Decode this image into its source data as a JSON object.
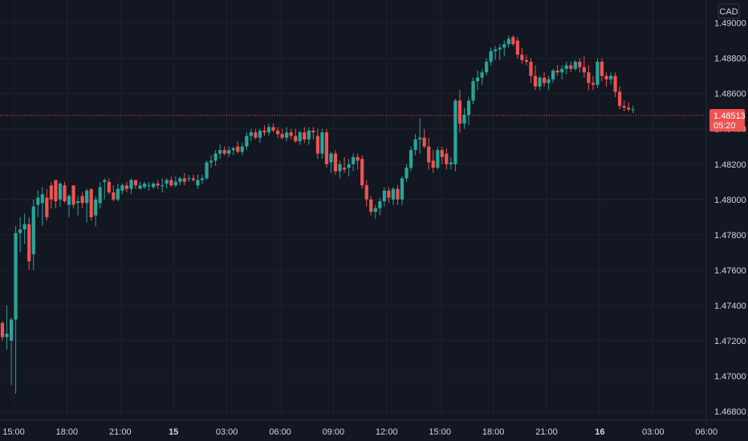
{
  "chart_data": {
    "type": "candlestick",
    "currency": "CAD",
    "y_ticks": [
      "1.49000",
      "1.48800",
      "1.48600",
      "1.48400",
      "1.48200",
      "1.48000",
      "1.47800",
      "1.47600",
      "1.47400",
      "1.47200",
      "1.47000",
      "1.46800"
    ],
    "x_ticks": [
      {
        "label": "15:00",
        "bold": false
      },
      {
        "label": "18:00",
        "bold": false
      },
      {
        "label": "21:00",
        "bold": false
      },
      {
        "label": "15",
        "bold": true
      },
      {
        "label": "03:00",
        "bold": false
      },
      {
        "label": "06:00",
        "bold": false
      },
      {
        "label": "09:00",
        "bold": false
      },
      {
        "label": "12:00",
        "bold": false
      },
      {
        "label": "15:00",
        "bold": false
      },
      {
        "label": "18:00",
        "bold": false
      },
      {
        "label": "21:00",
        "bold": false
      },
      {
        "label": "16",
        "bold": true
      },
      {
        "label": "03:00",
        "bold": false
      },
      {
        "label": "06:00",
        "bold": false
      }
    ],
    "ylim": [
      1.4675,
      1.4913
    ],
    "current_price": "1.48513",
    "countdown": "05:20",
    "up_color": "#26a69a",
    "down_color": "#ef5350",
    "grid": true,
    "candles": [
      [
        1.473,
        1.4731,
        1.472,
        1.4722
      ],
      [
        1.4722,
        1.474,
        1.4715,
        1.4724
      ],
      [
        1.472,
        1.4733,
        1.4695,
        1.4732
      ],
      [
        1.4732,
        1.4785,
        1.469,
        1.4781
      ],
      [
        1.4781,
        1.479,
        1.477,
        1.4783
      ],
      [
        1.4783,
        1.4792,
        1.4775,
        1.4786
      ],
      [
        1.4786,
        1.479,
        1.476,
        1.4765
      ],
      [
        1.4769,
        1.48,
        1.476,
        1.4796
      ],
      [
        1.4797,
        1.4805,
        1.479,
        1.4801
      ],
      [
        1.4798,
        1.4807,
        1.4785,
        1.4803
      ],
      [
        1.4801,
        1.4806,
        1.4788,
        1.479
      ],
      [
        1.4808,
        1.481,
        1.4795,
        1.48
      ],
      [
        1.4811,
        1.4811,
        1.4795,
        1.4799
      ],
      [
        1.48,
        1.481,
        1.4796,
        1.4809
      ],
      [
        1.4808,
        1.481,
        1.4798,
        1.4799
      ],
      [
        1.4797,
        1.4803,
        1.479,
        1.4802
      ],
      [
        1.4808,
        1.4808,
        1.4795,
        1.4797
      ],
      [
        1.4798,
        1.4802,
        1.4791,
        1.4799
      ],
      [
        1.4802,
        1.4804,
        1.4795,
        1.4798
      ],
      [
        1.4798,
        1.4806,
        1.4787,
        1.4805
      ],
      [
        1.4806,
        1.4806,
        1.4788,
        1.479
      ],
      [
        1.4791,
        1.4802,
        1.4785,
        1.48
      ],
      [
        1.4798,
        1.481,
        1.4795,
        1.4807
      ],
      [
        1.481,
        1.4812,
        1.48,
        1.4811
      ],
      [
        1.481,
        1.4812,
        1.4803,
        1.4804
      ],
      [
        1.4804,
        1.4808,
        1.4799,
        1.48
      ],
      [
        1.48,
        1.4809,
        1.4799,
        1.4806
      ],
      [
        1.4805,
        1.4809,
        1.4803,
        1.4808
      ],
      [
        1.4808,
        1.481,
        1.4804,
        1.4806
      ],
      [
        1.4806,
        1.4812,
        1.4803,
        1.4811
      ],
      [
        1.4811,
        1.4811,
        1.4806,
        1.4808
      ],
      [
        1.4806,
        1.481,
        1.4806,
        1.4808
      ],
      [
        1.4807,
        1.481,
        1.4806,
        1.4809
      ],
      [
        1.4808,
        1.481,
        1.4805,
        1.4808
      ],
      [
        1.4807,
        1.481,
        1.4806,
        1.4809
      ],
      [
        1.4809,
        1.4811,
        1.4806,
        1.4808
      ],
      [
        1.4808,
        1.4812,
        1.4804,
        1.4808
      ],
      [
        1.4809,
        1.4812,
        1.4806,
        1.4811
      ],
      [
        1.4811,
        1.4813,
        1.4807,
        1.4808
      ],
      [
        1.4808,
        1.4813,
        1.4807,
        1.481
      ],
      [
        1.481,
        1.4813,
        1.4808,
        1.4812
      ],
      [
        1.4812,
        1.4815,
        1.4808,
        1.481
      ],
      [
        1.4812,
        1.4814,
        1.481,
        1.4812
      ],
      [
        1.4812,
        1.4814,
        1.481,
        1.4811
      ],
      [
        1.4808,
        1.4814,
        1.4806,
        1.4811
      ],
      [
        1.4811,
        1.4814,
        1.4809,
        1.4812
      ],
      [
        1.4812,
        1.4822,
        1.4811,
        1.4821
      ],
      [
        1.4821,
        1.4825,
        1.4818,
        1.4822
      ],
      [
        1.4822,
        1.4828,
        1.4819,
        1.4826
      ],
      [
        1.4826,
        1.4831,
        1.4823,
        1.4828
      ],
      [
        1.4828,
        1.483,
        1.4825,
        1.4826
      ],
      [
        1.4826,
        1.483,
        1.4824,
        1.4828
      ],
      [
        1.4828,
        1.483,
        1.4825,
        1.4829
      ],
      [
        1.483,
        1.4833,
        1.4826,
        1.4827
      ],
      [
        1.4827,
        1.4832,
        1.4825,
        1.483
      ],
      [
        1.483,
        1.4838,
        1.4828,
        1.4836
      ],
      [
        1.4836,
        1.484,
        1.4833,
        1.4838
      ],
      [
        1.4838,
        1.484,
        1.4834,
        1.4835
      ],
      [
        1.4835,
        1.484,
        1.4832,
        1.4839
      ],
      [
        1.4839,
        1.4842,
        1.4836,
        1.4838
      ],
      [
        1.4838,
        1.4843,
        1.4836,
        1.4841
      ],
      [
        1.4841,
        1.4843,
        1.4838,
        1.4839
      ],
      [
        1.4839,
        1.4841,
        1.4835,
        1.4837
      ],
      [
        1.4837,
        1.484,
        1.4834,
        1.4835
      ],
      [
        1.4835,
        1.4841,
        1.4833,
        1.4838
      ],
      [
        1.4838,
        1.484,
        1.4834,
        1.4836
      ],
      [
        1.4836,
        1.484,
        1.4832,
        1.4833
      ],
      [
        1.4833,
        1.4839,
        1.4831,
        1.4838
      ],
      [
        1.4838,
        1.4841,
        1.4832,
        1.4834
      ],
      [
        1.4834,
        1.4841,
        1.4831,
        1.4839
      ],
      [
        1.4839,
        1.4841,
        1.4834,
        1.4838
      ],
      [
        1.4836,
        1.484,
        1.4823,
        1.4826
      ],
      [
        1.4826,
        1.484,
        1.4823,
        1.4838
      ],
      [
        1.4838,
        1.484,
        1.4818,
        1.482
      ],
      [
        1.4821,
        1.4827,
        1.4815,
        1.4826
      ],
      [
        1.4826,
        1.4828,
        1.4814,
        1.4816
      ],
      [
        1.4816,
        1.4822,
        1.4812,
        1.482
      ],
      [
        1.4818,
        1.4824,
        1.4815,
        1.4817
      ],
      [
        1.4818,
        1.4823,
        1.4813,
        1.482
      ],
      [
        1.482,
        1.4826,
        1.4816,
        1.4824
      ],
      [
        1.4824,
        1.4826,
        1.4817,
        1.4822
      ],
      [
        1.4823,
        1.4825,
        1.4806,
        1.4808
      ],
      [
        1.4808,
        1.4811,
        1.4796,
        1.48
      ],
      [
        1.48,
        1.4802,
        1.4791,
        1.4793
      ],
      [
        1.4793,
        1.4797,
        1.4789,
        1.4795
      ],
      [
        1.4795,
        1.4801,
        1.4791,
        1.4799
      ],
      [
        1.4799,
        1.4807,
        1.4796,
        1.4805
      ],
      [
        1.4805,
        1.4807,
        1.4798,
        1.4801
      ],
      [
        1.48,
        1.4807,
        1.4797,
        1.4806
      ],
      [
        1.4806,
        1.4808,
        1.4797,
        1.48
      ],
      [
        1.48,
        1.4813,
        1.4797,
        1.4812
      ],
      [
        1.4812,
        1.482,
        1.481,
        1.4818
      ],
      [
        1.4818,
        1.483,
        1.4816,
        1.4828
      ],
      [
        1.4828,
        1.4837,
        1.4825,
        1.4834
      ],
      [
        1.4834,
        1.4846,
        1.4826,
        1.4835
      ],
      [
        1.4835,
        1.484,
        1.4829,
        1.483
      ],
      [
        1.483,
        1.4835,
        1.4817,
        1.4821
      ],
      [
        1.4822,
        1.4828,
        1.4815,
        1.4818
      ],
      [
        1.4818,
        1.483,
        1.4817,
        1.4828
      ],
      [
        1.4828,
        1.483,
        1.482,
        1.4824
      ],
      [
        1.4826,
        1.4829,
        1.4817,
        1.482
      ],
      [
        1.482,
        1.4824,
        1.4817,
        1.4821
      ],
      [
        1.482,
        1.4857,
        1.4816,
        1.4856
      ],
      [
        1.4856,
        1.4862,
        1.4838,
        1.4843
      ],
      [
        1.4843,
        1.4852,
        1.484,
        1.4848
      ],
      [
        1.4848,
        1.4858,
        1.4842,
        1.4856
      ],
      [
        1.4856,
        1.4869,
        1.4854,
        1.4867
      ],
      [
        1.4867,
        1.4873,
        1.4862,
        1.4869
      ],
      [
        1.4869,
        1.4874,
        1.4865,
        1.4872
      ],
      [
        1.4872,
        1.488,
        1.487,
        1.4878
      ],
      [
        1.4878,
        1.4886,
        1.4876,
        1.4884
      ],
      [
        1.4884,
        1.4887,
        1.4879,
        1.4885
      ],
      [
        1.4885,
        1.4888,
        1.4879,
        1.4886
      ],
      [
        1.4886,
        1.489,
        1.4881,
        1.4888
      ],
      [
        1.4888,
        1.4893,
        1.4886,
        1.4891
      ],
      [
        1.4892,
        1.4893,
        1.4887,
        1.4888
      ],
      [
        1.489,
        1.4892,
        1.488,
        1.4882
      ],
      [
        1.4882,
        1.4886,
        1.4877,
        1.4879
      ],
      [
        1.4879,
        1.4882,
        1.4876,
        1.4878
      ],
      [
        1.4878,
        1.488,
        1.4866,
        1.487
      ],
      [
        1.487,
        1.4876,
        1.4862,
        1.4864
      ],
      [
        1.4864,
        1.487,
        1.4862,
        1.4869
      ],
      [
        1.4869,
        1.4872,
        1.4864,
        1.4866
      ],
      [
        1.4866,
        1.487,
        1.4862,
        1.4868
      ],
      [
        1.4868,
        1.4874,
        1.4866,
        1.4873
      ],
      [
        1.4873,
        1.4876,
        1.487,
        1.4872
      ],
      [
        1.4872,
        1.4876,
        1.4868,
        1.4874
      ],
      [
        1.4874,
        1.4878,
        1.4871,
        1.4876
      ],
      [
        1.4876,
        1.4878,
        1.4872,
        1.4874
      ],
      [
        1.4874,
        1.4879,
        1.4873,
        1.4878
      ],
      [
        1.4878,
        1.488,
        1.4872,
        1.4875
      ],
      [
        1.4875,
        1.4881,
        1.4869,
        1.4872
      ],
      [
        1.4872,
        1.4876,
        1.4862,
        1.4866
      ],
      [
        1.4866,
        1.487,
        1.4862,
        1.4865
      ],
      [
        1.4865,
        1.488,
        1.4863,
        1.4878
      ],
      [
        1.4878,
        1.488,
        1.4867,
        1.487
      ],
      [
        1.487,
        1.4872,
        1.4864,
        1.4868
      ],
      [
        1.4868,
        1.4872,
        1.4865,
        1.487
      ],
      [
        1.487,
        1.4872,
        1.4858,
        1.4861
      ],
      [
        1.4861,
        1.4864,
        1.4851,
        1.4853
      ],
      [
        1.4853,
        1.4856,
        1.485,
        1.4852
      ],
      [
        1.4852,
        1.4855,
        1.485,
        1.4851
      ],
      [
        1.4851,
        1.4853,
        1.4849,
        1.4851
      ]
    ]
  }
}
